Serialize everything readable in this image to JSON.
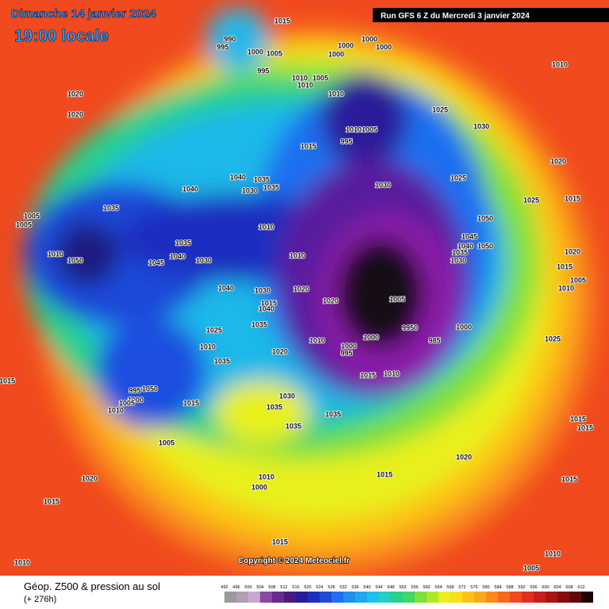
{
  "header": {
    "date": "Dimanche 14 janvier 2024",
    "time": "19:00 locale",
    "run": "Run GFS 6 Z du Mercredi 3 janvier 2024"
  },
  "footer": {
    "title": "Géop. Z500 & pression au sol",
    "lead": "(+ 276h)",
    "copyright": "Copyright © 2024 Meteociel.fr"
  },
  "colorbar": {
    "ticks": [
      492,
      496,
      500,
      504,
      508,
      512,
      516,
      520,
      524,
      528,
      532,
      536,
      540,
      544,
      548,
      552,
      556,
      560,
      564,
      568,
      572,
      576,
      580,
      584,
      588,
      592,
      596,
      600,
      604,
      608,
      612
    ]
  },
  "isobar_labels": [
    "990",
    "995",
    "1000",
    "1005",
    "995",
    "1015",
    "1000",
    "1000",
    "1000",
    "1000",
    "1010",
    "1005",
    "1010",
    "1010",
    "1010",
    "1005",
    "995",
    "1015",
    "1025",
    "1030",
    "1010",
    "1020",
    "1025",
    "1015",
    "1020",
    "1020",
    "1040",
    "1040",
    "1035",
    "1035",
    "1030",
    "1030",
    "1025",
    "1035",
    "1005",
    "1005",
    "1050",
    "1045",
    "1040",
    "1050",
    "1035",
    "1030",
    "1010",
    "1035",
    "1045",
    "1040",
    "1030",
    "1010",
    "1050",
    "1010",
    "1020",
    "1040",
    "1030",
    "1015",
    "1040",
    "1020",
    "1005",
    "1020",
    "1015",
    "1005",
    "1010",
    "1000",
    "9950",
    "985",
    "1025",
    "1035",
    "1025",
    "1010",
    "1010",
    "1000",
    "995",
    "1000",
    "1020",
    "1035",
    "1015",
    "1010",
    "1015",
    "995",
    "1050",
    "1000",
    "1005",
    "1010",
    "1015",
    "1030",
    "1035",
    "1035",
    "1035",
    "1005",
    "1020",
    "1020",
    "1015",
    "1010",
    "1000",
    "1015",
    "1015",
    "1015",
    "1015",
    "1015",
    "1010",
    "1010",
    "1005"
  ]
}
